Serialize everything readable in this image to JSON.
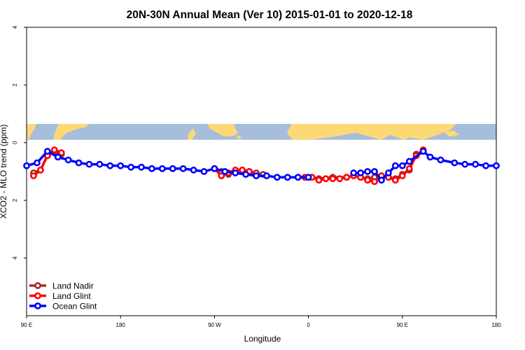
{
  "chart_data": {
    "type": "line",
    "title": "20N-30N Annual Mean (Ver 10)   2015-01-01 to 2020-12-18",
    "xlabel": "Longitude",
    "ylabel": "XCO2 - MLO trend (ppm)",
    "xlim": [
      -90,
      180
    ],
    "ylim": [
      -6,
      4
    ],
    "x_ticks": [
      {
        "value": -90,
        "label": "90 E"
      },
      {
        "value": -36,
        "label": "180"
      },
      {
        "value": 18,
        "label": "90 W"
      },
      {
        "value": 72,
        "label": "0"
      },
      {
        "value": 126,
        "label": "90 E"
      },
      {
        "value": 180,
        "label": "180"
      }
    ],
    "y_ticks": [
      {
        "value": 4,
        "label": "4"
      },
      {
        "value": 2,
        "label": "2"
      },
      {
        "value": 0,
        "label": "0"
      },
      {
        "value": -2,
        "label": "2"
      },
      {
        "value": -4,
        "label": "4"
      }
    ],
    "map_band": {
      "ymin": 0.1,
      "ymax": 0.65,
      "ocean_color": "#a6bddb",
      "land_color": "#fdd976"
    },
    "legend_position": "bottom-left",
    "series": [
      {
        "name": "Land Nadir",
        "color": "#a52a2a",
        "x": [
          -86,
          -82,
          -78,
          -74,
          -70,
          22,
          26,
          30,
          34,
          38,
          42,
          46,
          74,
          78,
          86,
          94,
          98,
          102,
          106,
          110,
          114,
          118,
          122,
          126,
          130,
          134,
          138
        ],
        "y": [
          -1.05,
          -0.95,
          -0.45,
          -0.3,
          -0.4,
          -1.0,
          -1.1,
          -1.0,
          -0.95,
          -1.0,
          -1.05,
          -1.1,
          -1.2,
          -1.25,
          -1.2,
          -1.2,
          -1.15,
          -1.2,
          -1.25,
          -1.2,
          -1.15,
          -1.2,
          -1.25,
          -1.1,
          -0.95,
          -0.4,
          -0.3
        ]
      },
      {
        "name": "Land Glint",
        "color": "#ff0000",
        "x": [
          -86,
          -82,
          -78,
          -74,
          -70,
          18,
          22,
          26,
          30,
          34,
          38,
          42,
          70,
          74,
          78,
          82,
          86,
          90,
          94,
          98,
          102,
          106,
          110,
          114,
          118,
          122,
          126,
          130,
          134,
          138
        ],
        "y": [
          -1.15,
          -0.95,
          -0.45,
          -0.25,
          -0.35,
          -0.9,
          -1.15,
          -1.05,
          -0.95,
          -0.95,
          -1.0,
          -1.15,
          -1.2,
          -1.2,
          -1.3,
          -1.25,
          -1.25,
          -1.25,
          -1.2,
          -1.15,
          -1.2,
          -1.3,
          -1.35,
          -1.15,
          -1.2,
          -1.3,
          -1.15,
          -0.9,
          -0.45,
          -0.25
        ]
      },
      {
        "name": "Ocean Glint",
        "color": "#0000ff",
        "x": [
          -90,
          -84,
          -78,
          -72,
          -66,
          -60,
          -54,
          -48,
          -42,
          -36,
          -30,
          -24,
          -18,
          -12,
          -6,
          0,
          6,
          12,
          18,
          24,
          30,
          36,
          42,
          48,
          54,
          60,
          66,
          72,
          98,
          102,
          106,
          110,
          114,
          118,
          122,
          126,
          130,
          138,
          142,
          148,
          156,
          162,
          168,
          174,
          180
        ],
        "y": [
          -0.8,
          -0.7,
          -0.3,
          -0.5,
          -0.6,
          -0.7,
          -0.75,
          -0.75,
          -0.8,
          -0.8,
          -0.85,
          -0.85,
          -0.9,
          -0.9,
          -0.9,
          -0.9,
          -0.95,
          -1.0,
          -0.9,
          -1.0,
          -1.05,
          -1.1,
          -1.15,
          -1.15,
          -1.2,
          -1.2,
          -1.2,
          -1.2,
          -1.05,
          -1.05,
          -1.0,
          -1.0,
          -1.3,
          -1.05,
          -0.8,
          -0.8,
          -0.65,
          -0.3,
          -0.5,
          -0.6,
          -0.7,
          -0.75,
          -0.75,
          -0.8,
          -0.8
        ]
      }
    ]
  }
}
